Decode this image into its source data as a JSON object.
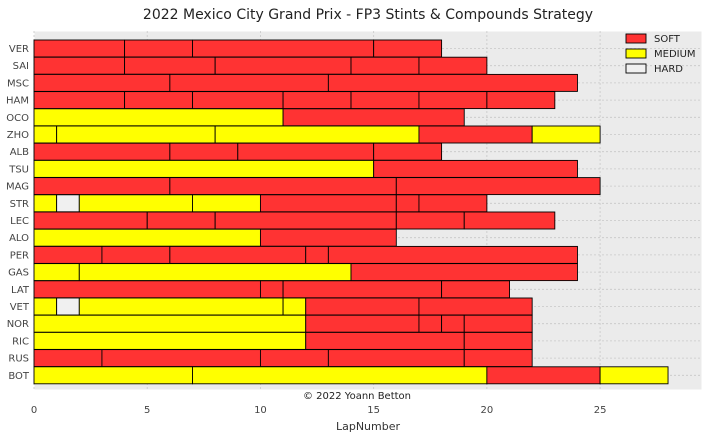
{
  "chart_data": {
    "type": "bar",
    "orientation": "horizontal-stacked",
    "title": "2022 Mexico City Grand Prix - FP3 Stints & Compounds Strategy",
    "xlabel": "LapNumber",
    "ylabel": "",
    "xlim": [
      0,
      29.5
    ],
    "xticks": [
      0,
      5,
      10,
      15,
      20,
      25
    ],
    "grid": true,
    "legend_position": "top-right",
    "annotation": "© 2022 Yoann Betton",
    "compound_colors": {
      "SOFT": "#ff3333",
      "MEDIUM": "#ffff00",
      "HARD": "#f0f0f0"
    },
    "legend": [
      "SOFT",
      "MEDIUM",
      "HARD"
    ],
    "drivers": [
      "VER",
      "SAI",
      "MSC",
      "HAM",
      "OCO",
      "ZHO",
      "ALB",
      "TSU",
      "MAG",
      "STR",
      "LEC",
      "ALO",
      "PER",
      "GAS",
      "LAT",
      "VET",
      "NOR",
      "RIC",
      "RUS",
      "BOT"
    ],
    "stints": {
      "VER": [
        [
          "SOFT",
          4
        ],
        [
          "SOFT",
          3
        ],
        [
          "SOFT",
          8
        ],
        [
          "SOFT",
          3
        ]
      ],
      "SAI": [
        [
          "SOFT",
          4
        ],
        [
          "SOFT",
          4
        ],
        [
          "SOFT",
          6
        ],
        [
          "SOFT",
          3
        ],
        [
          "SOFT",
          3
        ]
      ],
      "MSC": [
        [
          "SOFT",
          6
        ],
        [
          "SOFT",
          7
        ],
        [
          "SOFT",
          11
        ]
      ],
      "HAM": [
        [
          "SOFT",
          4
        ],
        [
          "SOFT",
          3
        ],
        [
          "SOFT",
          4
        ],
        [
          "SOFT",
          3
        ],
        [
          "SOFT",
          3
        ],
        [
          "SOFT",
          3
        ],
        [
          "SOFT",
          3
        ]
      ],
      "OCO": [
        [
          "MEDIUM",
          11
        ],
        [
          "SOFT",
          8
        ]
      ],
      "ZHO": [
        [
          "MEDIUM",
          1
        ],
        [
          "MEDIUM",
          7
        ],
        [
          "MEDIUM",
          9
        ],
        [
          "SOFT",
          5
        ],
        [
          "MEDIUM",
          3
        ]
      ],
      "ALB": [
        [
          "SOFT",
          6
        ],
        [
          "SOFT",
          3
        ],
        [
          "SOFT",
          6
        ],
        [
          "SOFT",
          3
        ]
      ],
      "TSU": [
        [
          "MEDIUM",
          15
        ],
        [
          "SOFT",
          9
        ]
      ],
      "MAG": [
        [
          "SOFT",
          6
        ],
        [
          "SOFT",
          10
        ],
        [
          "SOFT",
          9
        ]
      ],
      "STR": [
        [
          "MEDIUM",
          1
        ],
        [
          "HARD",
          1
        ],
        [
          "MEDIUM",
          5
        ],
        [
          "MEDIUM",
          3
        ],
        [
          "SOFT",
          6
        ],
        [
          "SOFT",
          1
        ],
        [
          "SOFT",
          3
        ]
      ],
      "LEC": [
        [
          "SOFT",
          5
        ],
        [
          "SOFT",
          3
        ],
        [
          "SOFT",
          8
        ],
        [
          "SOFT",
          3
        ],
        [
          "SOFT",
          4
        ]
      ],
      "ALO": [
        [
          "MEDIUM",
          10
        ],
        [
          "SOFT",
          6
        ]
      ],
      "PER": [
        [
          "SOFT",
          3
        ],
        [
          "SOFT",
          3
        ],
        [
          "SOFT",
          6
        ],
        [
          "SOFT",
          1
        ],
        [
          "SOFT",
          11
        ]
      ],
      "GAS": [
        [
          "MEDIUM",
          2
        ],
        [
          "MEDIUM",
          12
        ],
        [
          "SOFT",
          10
        ]
      ],
      "LAT": [
        [
          "SOFT",
          10
        ],
        [
          "SOFT",
          1
        ],
        [
          "SOFT",
          7
        ],
        [
          "SOFT",
          3
        ]
      ],
      "VET": [
        [
          "MEDIUM",
          1
        ],
        [
          "HARD",
          1
        ],
        [
          "MEDIUM",
          9
        ],
        [
          "MEDIUM",
          1
        ],
        [
          "SOFT",
          5
        ],
        [
          "SOFT",
          5
        ]
      ],
      "NOR": [
        [
          "MEDIUM",
          12
        ],
        [
          "SOFT",
          5
        ],
        [
          "SOFT",
          1
        ],
        [
          "SOFT",
          1
        ],
        [
          "SOFT",
          3
        ]
      ],
      "RIC": [
        [
          "MEDIUM",
          12
        ],
        [
          "SOFT",
          7
        ],
        [
          "SOFT",
          3
        ]
      ],
      "RUS": [
        [
          "SOFT",
          3
        ],
        [
          "SOFT",
          7
        ],
        [
          "SOFT",
          3
        ],
        [
          "SOFT",
          6
        ],
        [
          "SOFT",
          3
        ]
      ],
      "BOT": [
        [
          "MEDIUM",
          7
        ],
        [
          "MEDIUM",
          13
        ],
        [
          "SOFT",
          5
        ],
        [
          "MEDIUM",
          3
        ]
      ]
    }
  }
}
